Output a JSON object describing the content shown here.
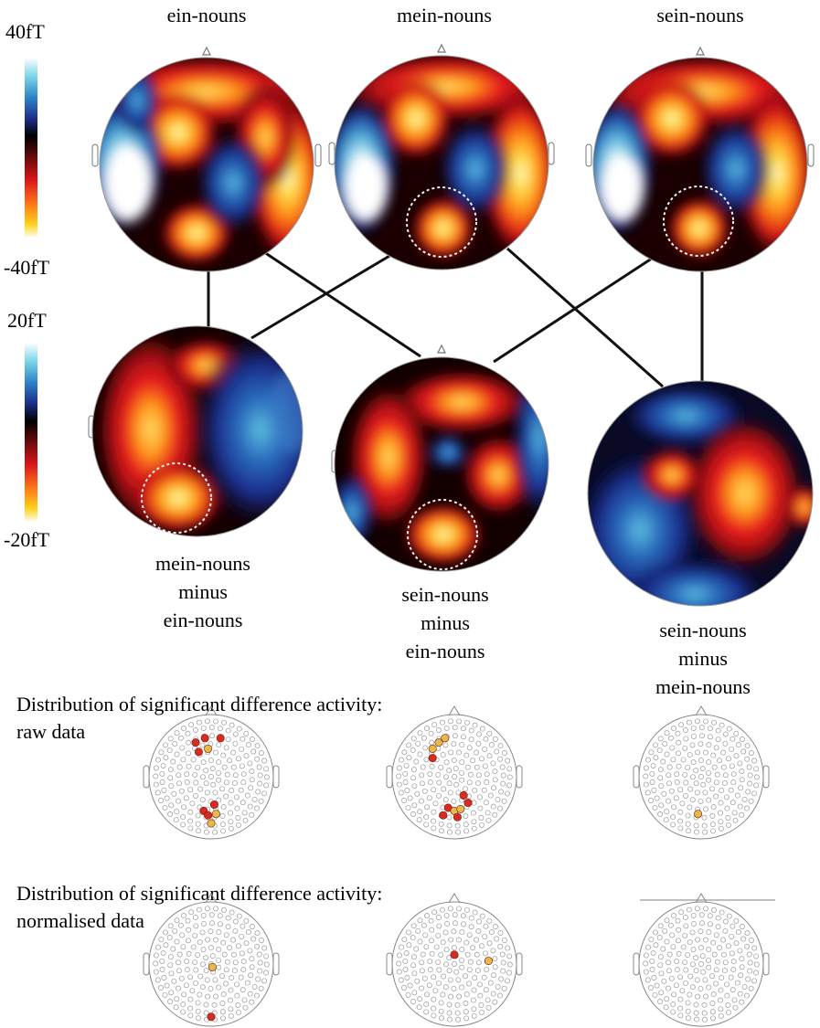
{
  "colorbars": {
    "top": {
      "max_label": "40fT",
      "min_label": "-40fT"
    },
    "bottom": {
      "max_label": "20fT",
      "min_label": "-20fT"
    }
  },
  "colors": {
    "positive_field": "#e8161d",
    "negative_field": "#1f3f9f",
    "zero": "#000000",
    "highlight_circle": "#f2f2f2",
    "significant_strong": "#d92b1f",
    "significant_weak": "#e8b84a"
  },
  "conditions": {
    "ein": "ein-nouns",
    "mein": "mein-nouns",
    "sein": "sein-nouns"
  },
  "differences": {
    "mein_minus_ein": {
      "line1": "mein-nouns",
      "line2": "minus",
      "line3": "ein-nouns"
    },
    "sein_minus_ein": {
      "line1": "sein-nouns",
      "line2": "minus",
      "line3": "ein-nouns"
    },
    "sein_minus_mein": {
      "line1": "sein-nouns",
      "line2": "minus",
      "line3": "mein-nouns"
    }
  },
  "significance": {
    "raw": {
      "title_line1": "Distribution of significant difference activity:",
      "title_line2": "raw data"
    },
    "normalised": {
      "title_line1": "Distribution of significant difference activity:",
      "title_line2": "normalised data"
    }
  }
}
